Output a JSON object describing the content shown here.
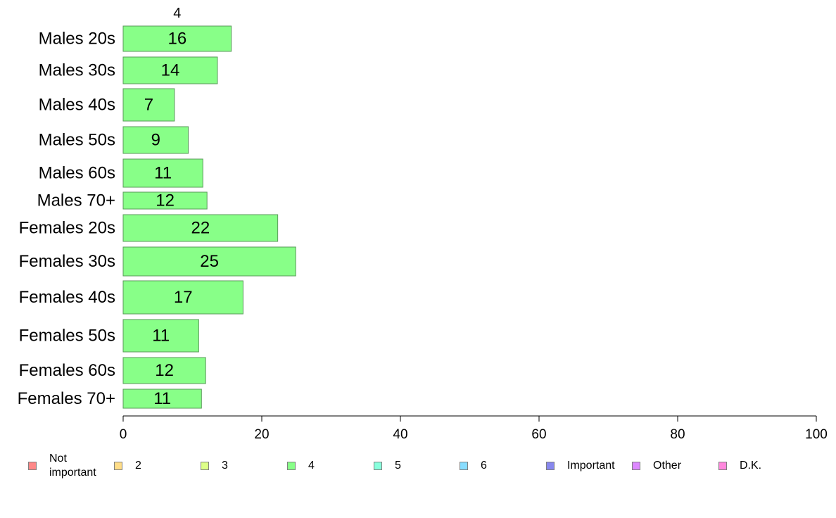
{
  "chart_data": {
    "type": "bar",
    "orientation": "horizontal",
    "stacked": true,
    "series_header": "4",
    "categories": [
      "Males 20s",
      "Males 30s",
      "Males 40s",
      "Males 50s",
      "Males 60s",
      "Males 70+",
      "Females 20s",
      "Females 30s",
      "Females 40s",
      "Females 50s",
      "Females 60s",
      "Females 70+"
    ],
    "series": [
      {
        "name": "4",
        "color": "#88ff88",
        "values": [
          15.6,
          13.6,
          7.4,
          9.4,
          11.5,
          12.1,
          22.3,
          24.9,
          17.3,
          10.9,
          11.9,
          11.3
        ],
        "labels": [
          "16",
          "14",
          "7",
          "9",
          "11",
          "12",
          "22",
          "25",
          "17",
          "11",
          "12",
          "11"
        ]
      }
    ],
    "xlim": [
      0,
      100
    ],
    "xticks": [
      "0",
      "20",
      "40",
      "60",
      "80",
      "100"
    ],
    "grid": false,
    "legend_position": "bottom",
    "legend": [
      {
        "label": "Not important",
        "color": "#ff8888"
      },
      {
        "label": "2",
        "color": "#ffdd88"
      },
      {
        "label": "3",
        "color": "#ddff88"
      },
      {
        "label": "4",
        "color": "#88ff88"
      },
      {
        "label": "5",
        "color": "#88ffdd"
      },
      {
        "label": "6",
        "color": "#88ddff"
      },
      {
        "label": "Important",
        "color": "#8888ee"
      },
      {
        "label": "Other",
        "color": "#dd88ff"
      },
      {
        "label": "D.K.",
        "color": "#ff88dd"
      }
    ]
  }
}
